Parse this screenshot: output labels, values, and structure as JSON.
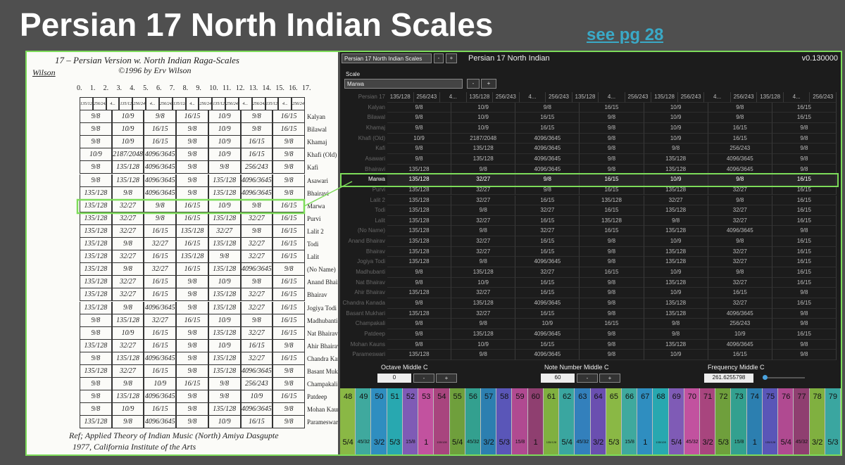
{
  "slide": {
    "title": "Persian 17 North Indian Scales",
    "link": "see pg 28"
  },
  "scan": {
    "title": "17 – Persian Version w. North Indian Raga-Scales",
    "copyright": "©1996 by Erv Wilson",
    "signature": "Wilson",
    "step_numbers": [
      "0.",
      "1.",
      "2.",
      "3.",
      "4.",
      "5.",
      "6.",
      "7.",
      "8.",
      "9.",
      "10.",
      "11.",
      "12.",
      "13.",
      "14.",
      "15.",
      "16.",
      "17."
    ],
    "reference": [
      "Ref; Applied Theory of Indian Music (North) Amiya Dasgupte",
      "1977, California Institute of the Arts"
    ]
  },
  "app": {
    "preset": "Persian 17 North Indian Scales",
    "minus": "-",
    "plus": "+",
    "title": "Persian 17 North Indian",
    "version": "v0.130000",
    "scale_label": "Scale",
    "selected_scale": "Marwa",
    "table": {
      "header_name": "Persian 17",
      "header": [
        "135/128",
        "256/243",
        "4...",
        "135/128",
        "256/243",
        "4...",
        "256/243",
        "135/128",
        "4...",
        "256/243",
        "135/128",
        "256/243",
        "4...",
        "256/243",
        "135/128",
        "4...",
        "256/243"
      ],
      "rows": [
        {
          "name": "Kalyan",
          "cells": [
            "9/8",
            "10/9",
            "9/8",
            "16/15",
            "10/9",
            "9/8",
            "16/15"
          ]
        },
        {
          "name": "Bilawal",
          "cells": [
            "9/8",
            "10/9",
            "16/15",
            "9/8",
            "10/9",
            "9/8",
            "16/15"
          ]
        },
        {
          "name": "Khamaj",
          "cells": [
            "9/8",
            "10/9",
            "16/15",
            "9/8",
            "10/9",
            "16/15",
            "9/8"
          ]
        },
        {
          "name": "Khafi (Old)",
          "cells": [
            "10/9",
            "2187/2048",
            "4096/3645",
            "9/8",
            "10/9",
            "16/15",
            "9/8"
          ]
        },
        {
          "name": "Kafi",
          "cells": [
            "9/8",
            "135/128",
            "4096/3645",
            "9/8",
            "9/8",
            "256/243",
            "9/8"
          ]
        },
        {
          "name": "Asawari",
          "cells": [
            "9/8",
            "135/128",
            "4096/3645",
            "9/8",
            "135/128",
            "4096/3645",
            "9/8"
          ]
        },
        {
          "name": "Bhairavi",
          "cells": [
            "135/128",
            "9/8",
            "4096/3645",
            "9/8",
            "135/128",
            "4096/3645",
            "9/8"
          ]
        },
        {
          "name": "Marwa",
          "cells": [
            "135/128",
            "32/27",
            "9/8",
            "16/15",
            "10/9",
            "9/8",
            "16/15"
          ]
        },
        {
          "name": "Purvi",
          "cells": [
            "135/128",
            "32/27",
            "9/8",
            "16/15",
            "135/128",
            "32/27",
            "16/15"
          ]
        },
        {
          "name": "Lalit 2",
          "cells": [
            "135/128",
            "32/27",
            "16/15",
            "135/128",
            "32/27",
            "9/8",
            "16/15"
          ]
        },
        {
          "name": "Todi",
          "cells": [
            "135/128",
            "9/8",
            "32/27",
            "16/15",
            "135/128",
            "32/27",
            "16/15"
          ]
        },
        {
          "name": "Lalit",
          "cells": [
            "135/128",
            "32/27",
            "16/15",
            "135/128",
            "9/8",
            "32/27",
            "16/15"
          ]
        },
        {
          "name": "(No Name)",
          "cells": [
            "135/128",
            "9/8",
            "32/27",
            "16/15",
            "135/128",
            "4096/3645",
            "9/8"
          ]
        },
        {
          "name": "Anand Bhairav",
          "cells": [
            "135/128",
            "32/27",
            "16/15",
            "9/8",
            "10/9",
            "9/8",
            "16/15"
          ]
        },
        {
          "name": "Bhairav",
          "cells": [
            "135/128",
            "32/27",
            "16/15",
            "9/8",
            "135/128",
            "32/27",
            "16/15"
          ]
        },
        {
          "name": "Jogiya Todi",
          "cells": [
            "135/128",
            "9/8",
            "4096/3645",
            "9/8",
            "135/128",
            "32/27",
            "16/15"
          ]
        },
        {
          "name": "Madhubanti",
          "cells": [
            "9/8",
            "135/128",
            "32/27",
            "16/15",
            "10/9",
            "9/8",
            "16/15"
          ]
        },
        {
          "name": "Nat Bhairav",
          "cells": [
            "9/8",
            "10/9",
            "16/15",
            "9/8",
            "135/128",
            "32/27",
            "16/15"
          ]
        },
        {
          "name": "Ahir Bhairav",
          "cells": [
            "135/128",
            "32/27",
            "16/15",
            "9/8",
            "10/9",
            "16/15",
            "9/8"
          ]
        },
        {
          "name": "Chandra Kanada",
          "cells": [
            "9/8",
            "135/128",
            "4096/3645",
            "9/8",
            "135/128",
            "32/27",
            "16/15"
          ]
        },
        {
          "name": "Basant Mukhari",
          "cells": [
            "135/128",
            "32/27",
            "16/15",
            "9/8",
            "135/128",
            "4096/3645",
            "9/8"
          ]
        },
        {
          "name": "Champakali",
          "cells": [
            "9/8",
            "9/8",
            "10/9",
            "16/15",
            "9/8",
            "256/243",
            "9/8"
          ]
        },
        {
          "name": "Patdeep",
          "cells": [
            "9/8",
            "135/128",
            "4096/3645",
            "9/8",
            "9/8",
            "10/9",
            "16/15"
          ]
        },
        {
          "name": "Mohan Kauns",
          "cells": [
            "9/8",
            "10/9",
            "16/15",
            "9/8",
            "135/128",
            "4096/3645",
            "9/8"
          ]
        },
        {
          "name": "Parameswari",
          "cells": [
            "135/128",
            "9/8",
            "4096/3645",
            "9/8",
            "10/9",
            "16/15",
            "9/8"
          ]
        }
      ]
    },
    "controls": [
      {
        "label": "Octave Middle C",
        "value": 0
      },
      {
        "label": "Note Number Middle C",
        "value": 60
      },
      {
        "label": "Frequency Middle C",
        "value": 261.6255798
      }
    ],
    "keys": {
      "numbers": [
        48,
        49,
        50,
        51,
        52,
        53,
        54,
        55,
        56,
        57,
        58,
        59,
        60,
        61,
        62,
        63,
        64,
        65,
        66,
        67,
        68,
        69,
        70,
        71,
        72,
        73,
        74,
        75,
        76,
        77,
        78,
        79
      ],
      "ratios": [
        "5/4",
        "45/32",
        "3/2",
        "5/3",
        "15/8",
        "1",
        "135/128",
        "5/4",
        "45/32",
        "3/2",
        "5/3",
        "15/8",
        "1",
        "135/128",
        "5/4",
        "45/32",
        "3/2",
        "5/3",
        "15/8",
        "1",
        "135/128",
        "5/4",
        "45/32",
        "3/2",
        "5/3",
        "15/8",
        "1",
        "135/128",
        "5/4",
        "45/32",
        "3/2",
        "5/3"
      ]
    }
  }
}
